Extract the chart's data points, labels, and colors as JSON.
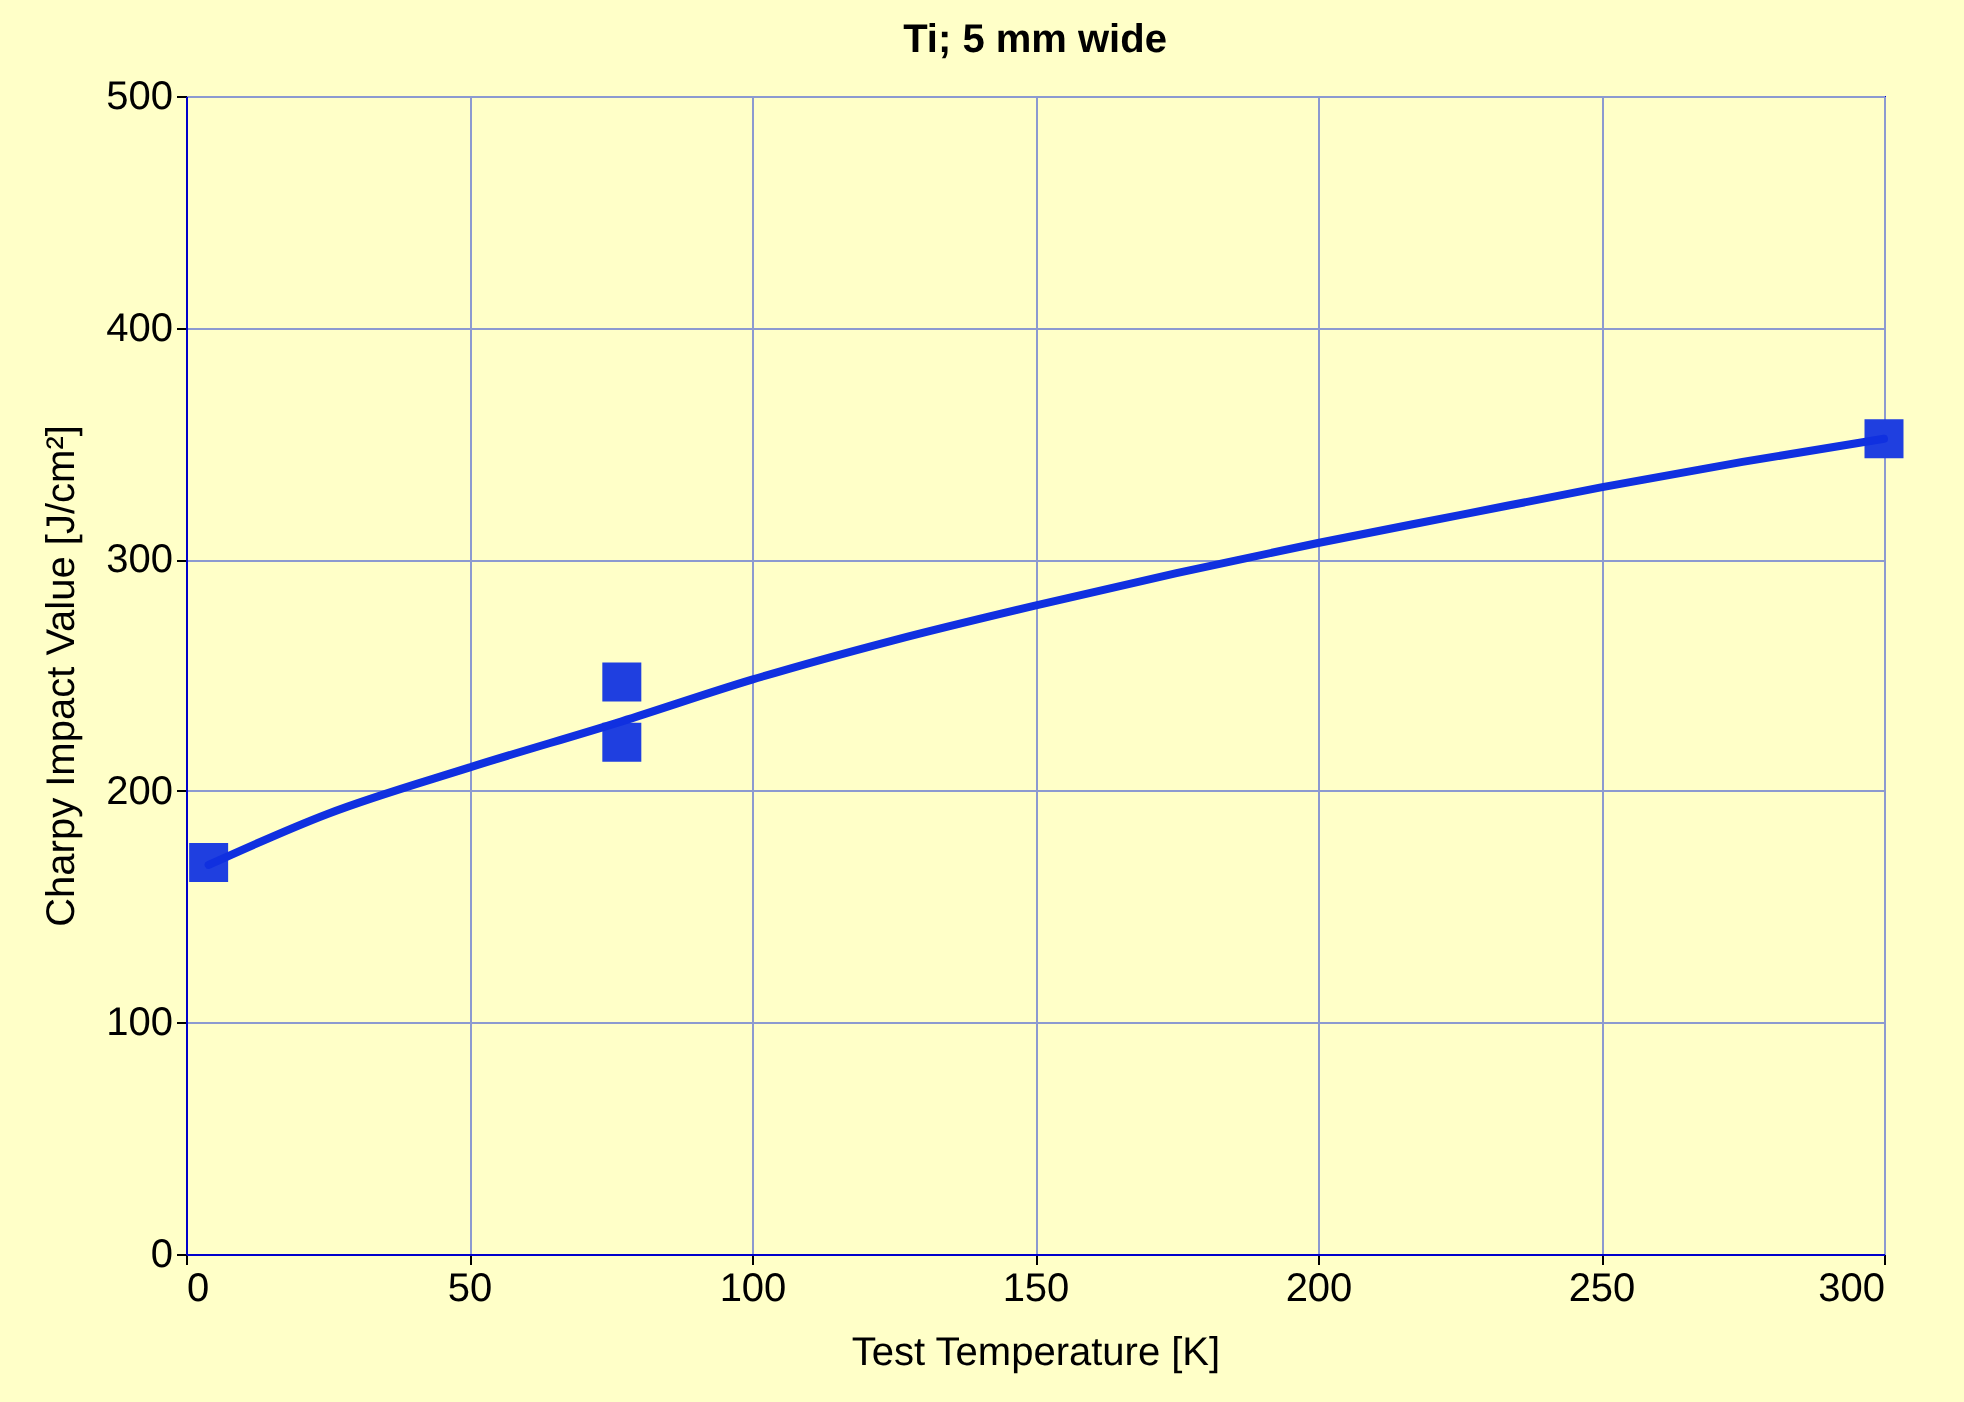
{
  "chart_data": {
    "type": "scatter",
    "title": "Ti; 5 mm wide",
    "xlabel": "Test Temperature [K]",
    "ylabel": "Charpy Impact Value [J/cm²]",
    "xlim": [
      0,
      300
    ],
    "xticks": [
      0,
      50,
      100,
      150,
      200,
      250,
      300
    ],
    "ylim": [
      0,
      500
    ],
    "yticks": [
      0,
      100,
      200,
      300,
      400,
      500
    ],
    "grid": true,
    "series": [
      {
        "marker": "square",
        "color": "#1f3fe0",
        "x": [
          4,
          77,
          77,
          300
        ],
        "values": [
          169,
          247,
          221,
          352
        ]
      },
      {
        "type": "line",
        "line_style": "solid",
        "color": "#1030e0",
        "x": [
          4,
          25,
          50,
          77,
          100,
          125,
          150,
          175,
          200,
          225,
          250,
          275,
          300
        ],
        "values": [
          168,
          190,
          210,
          230,
          248,
          265,
          280,
          294,
          307,
          319,
          331,
          342,
          352
        ]
      }
    ]
  }
}
